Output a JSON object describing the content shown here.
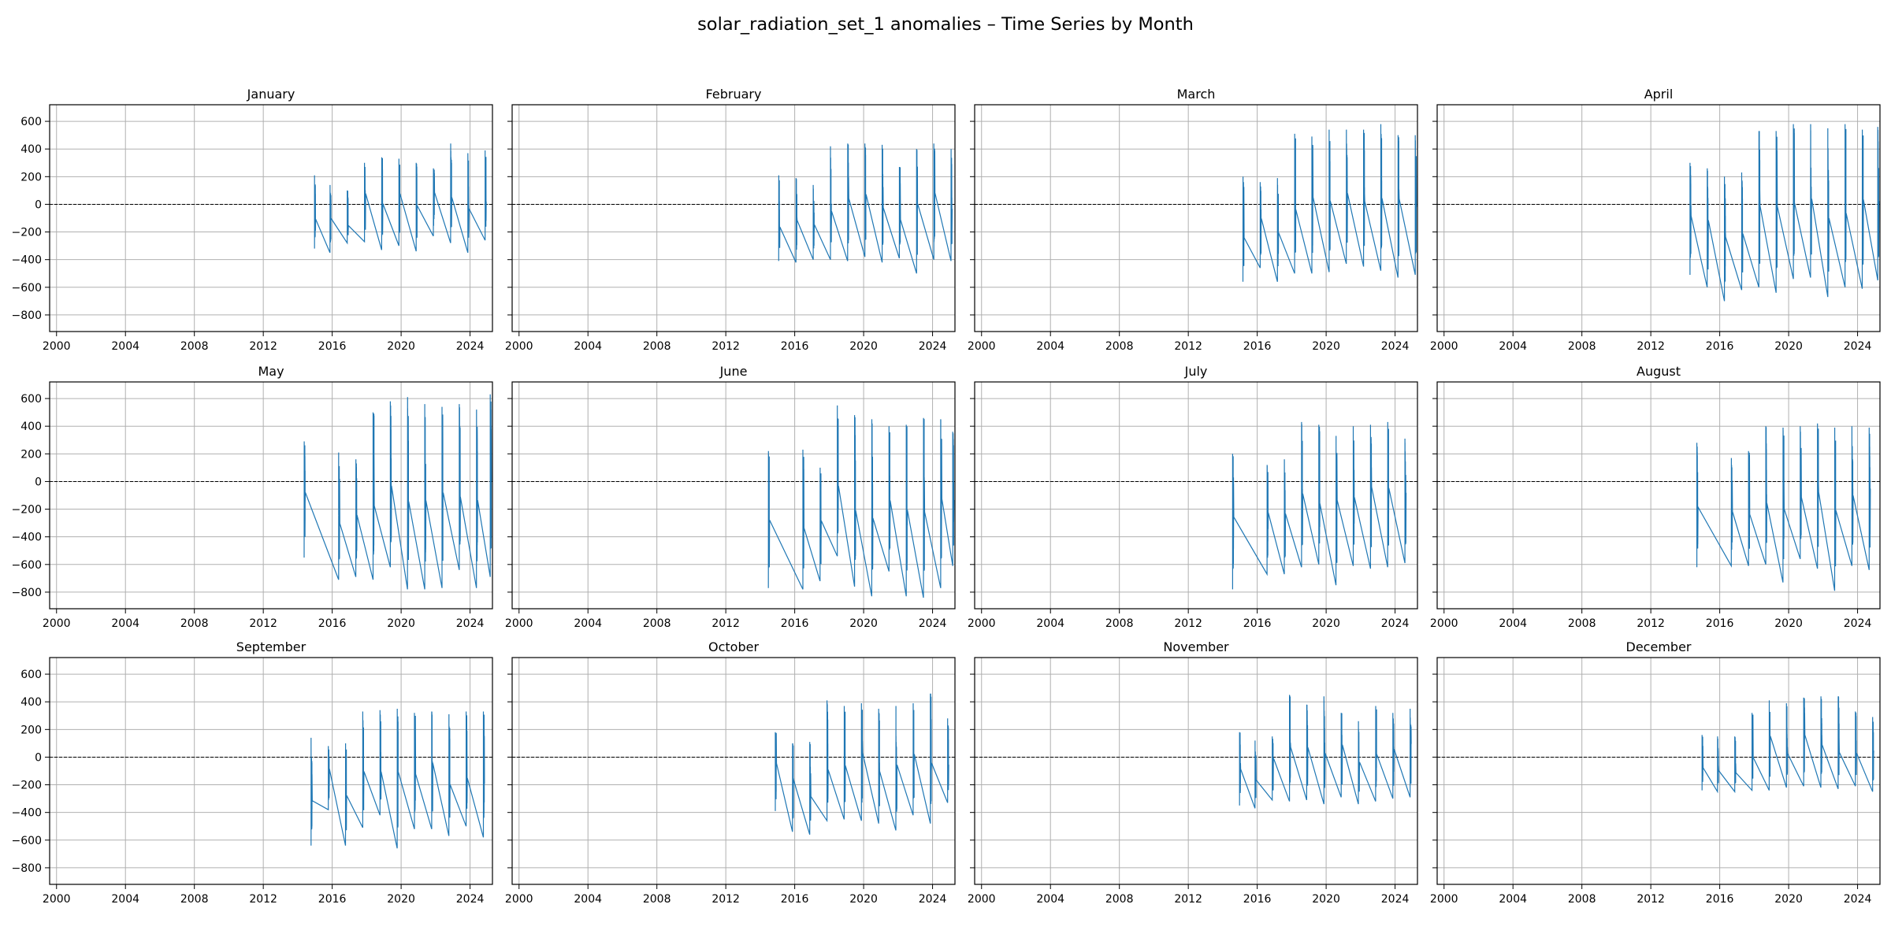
{
  "title": "solar_radiation_set_1 anomalies – Time Series by Month",
  "colors": {
    "series": "#1f77b4",
    "grid": "#b0b0b0",
    "zero_line": "#000000"
  },
  "chart_data": {
    "type": "line",
    "layout": "3x4 small multiples, shared x and y axes",
    "xlim": [
      1999.6,
      2025.3
    ],
    "ylim": [
      -920,
      720
    ],
    "x_ticks": [
      "2000",
      "2004",
      "2008",
      "2012",
      "2016",
      "2020",
      "2024"
    ],
    "y_ticks": [
      "600",
      "400",
      "200",
      "0",
      "−200",
      "−400",
      "−600",
      "−800"
    ],
    "grid": true,
    "reference_line": {
      "y": 0,
      "style": "dashed"
    },
    "panels": [
      {
        "month": "January",
        "segments": [
          {
            "x": 2015.0,
            "min": -320,
            "max": 210
          },
          {
            "x": 2015.9,
            "min": -350,
            "max": 140
          },
          {
            "x": 2016.9,
            "min": -280,
            "max": 100
          },
          {
            "x": 2017.9,
            "min": -270,
            "max": 300
          },
          {
            "x": 2018.9,
            "min": -330,
            "max": 340
          },
          {
            "x": 2019.9,
            "min": -300,
            "max": 330
          },
          {
            "x": 2020.9,
            "min": -340,
            "max": 300
          },
          {
            "x": 2021.9,
            "min": -230,
            "max": 260
          },
          {
            "x": 2022.9,
            "min": -280,
            "max": 440
          },
          {
            "x": 2023.9,
            "min": -350,
            "max": 370
          },
          {
            "x": 2024.9,
            "min": -260,
            "max": 390
          }
        ]
      },
      {
        "month": "February",
        "segments": [
          {
            "x": 2015.1,
            "min": -410,
            "max": 210
          },
          {
            "x": 2016.1,
            "min": -420,
            "max": 190
          },
          {
            "x": 2017.1,
            "min": -400,
            "max": 140
          },
          {
            "x": 2018.1,
            "min": -400,
            "max": 420
          },
          {
            "x": 2019.1,
            "min": -410,
            "max": 440
          },
          {
            "x": 2020.1,
            "min": -380,
            "max": 440
          },
          {
            "x": 2021.1,
            "min": -420,
            "max": 430
          },
          {
            "x": 2022.1,
            "min": -390,
            "max": 270
          },
          {
            "x": 2023.1,
            "min": -500,
            "max": 400
          },
          {
            "x": 2024.1,
            "min": -400,
            "max": 440
          },
          {
            "x": 2025.1,
            "min": -410,
            "max": 400
          }
        ]
      },
      {
        "month": "March",
        "segments": [
          {
            "x": 2015.2,
            "min": -560,
            "max": 200
          },
          {
            "x": 2016.2,
            "min": -460,
            "max": 160
          },
          {
            "x": 2017.2,
            "min": -560,
            "max": 190
          },
          {
            "x": 2018.2,
            "min": -500,
            "max": 510
          },
          {
            "x": 2019.2,
            "min": -500,
            "max": 490
          },
          {
            "x": 2020.2,
            "min": -490,
            "max": 540
          },
          {
            "x": 2021.2,
            "min": -430,
            "max": 540
          },
          {
            "x": 2022.2,
            "min": -450,
            "max": 540
          },
          {
            "x": 2023.2,
            "min": -480,
            "max": 580
          },
          {
            "x": 2024.2,
            "min": -530,
            "max": 500
          },
          {
            "x": 2025.2,
            "min": -510,
            "max": 500
          }
        ]
      },
      {
        "month": "April",
        "segments": [
          {
            "x": 2014.3,
            "min": -510,
            "max": 300
          },
          {
            "x": 2015.3,
            "min": -600,
            "max": 260
          },
          {
            "x": 2016.3,
            "min": -700,
            "max": 200
          },
          {
            "x": 2017.3,
            "min": -620,
            "max": 230
          },
          {
            "x": 2018.3,
            "min": -600,
            "max": 530
          },
          {
            "x": 2019.3,
            "min": -640,
            "max": 530
          },
          {
            "x": 2020.3,
            "min": -540,
            "max": 580
          },
          {
            "x": 2021.3,
            "min": -530,
            "max": 580
          },
          {
            "x": 2022.3,
            "min": -670,
            "max": 550
          },
          {
            "x": 2023.3,
            "min": -600,
            "max": 580
          },
          {
            "x": 2024.3,
            "min": -610,
            "max": 540
          },
          {
            "x": 2025.2,
            "min": -550,
            "max": 560
          }
        ]
      },
      {
        "month": "May",
        "segments": [
          {
            "x": 2014.4,
            "min": -550,
            "max": 290
          },
          {
            "x": 2016.4,
            "min": -710,
            "max": 210
          },
          {
            "x": 2017.4,
            "min": -690,
            "max": 160
          },
          {
            "x": 2018.4,
            "min": -710,
            "max": 500
          },
          {
            "x": 2019.4,
            "min": -620,
            "max": 580
          },
          {
            "x": 2020.4,
            "min": -780,
            "max": 610
          },
          {
            "x": 2021.4,
            "min": -780,
            "max": 560
          },
          {
            "x": 2022.4,
            "min": -770,
            "max": 540
          },
          {
            "x": 2023.4,
            "min": -640,
            "max": 560
          },
          {
            "x": 2024.4,
            "min": -770,
            "max": 520
          },
          {
            "x": 2025.2,
            "min": -690,
            "max": 630
          }
        ]
      },
      {
        "month": "June",
        "segments": [
          {
            "x": 2014.5,
            "min": -770,
            "max": 220
          },
          {
            "x": 2016.5,
            "min": -780,
            "max": 230
          },
          {
            "x": 2017.5,
            "min": -720,
            "max": 100
          },
          {
            "x": 2018.5,
            "min": -540,
            "max": 550
          },
          {
            "x": 2019.5,
            "min": -760,
            "max": 480
          },
          {
            "x": 2020.5,
            "min": -830,
            "max": 450
          },
          {
            "x": 2021.5,
            "min": -650,
            "max": 400
          },
          {
            "x": 2022.5,
            "min": -830,
            "max": 410
          },
          {
            "x": 2023.5,
            "min": -840,
            "max": 460
          },
          {
            "x": 2024.5,
            "min": -770,
            "max": 450
          },
          {
            "x": 2025.2,
            "min": -610,
            "max": 360
          }
        ]
      },
      {
        "month": "July",
        "segments": [
          {
            "x": 2014.6,
            "min": -780,
            "max": 200
          },
          {
            "x": 2016.6,
            "min": -670,
            "max": 120
          },
          {
            "x": 2017.6,
            "min": -670,
            "max": 160
          },
          {
            "x": 2018.6,
            "min": -620,
            "max": 430
          },
          {
            "x": 2019.6,
            "min": -600,
            "max": 410
          },
          {
            "x": 2020.6,
            "min": -750,
            "max": 330
          },
          {
            "x": 2021.6,
            "min": -610,
            "max": 400
          },
          {
            "x": 2022.6,
            "min": -630,
            "max": 410
          },
          {
            "x": 2023.6,
            "min": -620,
            "max": 430
          },
          {
            "x": 2024.6,
            "min": -590,
            "max": 310
          }
        ]
      },
      {
        "month": "August",
        "segments": [
          {
            "x": 2014.7,
            "min": -620,
            "max": 280
          },
          {
            "x": 2016.7,
            "min": -610,
            "max": 170
          },
          {
            "x": 2017.7,
            "min": -610,
            "max": 220
          },
          {
            "x": 2018.7,
            "min": -600,
            "max": 400
          },
          {
            "x": 2019.7,
            "min": -730,
            "max": 390
          },
          {
            "x": 2020.7,
            "min": -560,
            "max": 400
          },
          {
            "x": 2021.7,
            "min": -630,
            "max": 420
          },
          {
            "x": 2022.7,
            "min": -790,
            "max": 390
          },
          {
            "x": 2023.7,
            "min": -610,
            "max": 400
          },
          {
            "x": 2024.7,
            "min": -640,
            "max": 390
          }
        ]
      },
      {
        "month": "September",
        "segments": [
          {
            "x": 2014.8,
            "min": -640,
            "max": 140
          },
          {
            "x": 2015.8,
            "min": -380,
            "max": 80
          },
          {
            "x": 2016.8,
            "min": -640,
            "max": 100
          },
          {
            "x": 2017.8,
            "min": -510,
            "max": 330
          },
          {
            "x": 2018.8,
            "min": -420,
            "max": 340
          },
          {
            "x": 2019.8,
            "min": -660,
            "max": 350
          },
          {
            "x": 2020.8,
            "min": -520,
            "max": 320
          },
          {
            "x": 2021.8,
            "min": -520,
            "max": 330
          },
          {
            "x": 2022.8,
            "min": -570,
            "max": 310
          },
          {
            "x": 2023.8,
            "min": -500,
            "max": 330
          },
          {
            "x": 2024.8,
            "min": -580,
            "max": 330
          }
        ]
      },
      {
        "month": "October",
        "segments": [
          {
            "x": 2014.9,
            "min": -390,
            "max": 180
          },
          {
            "x": 2015.9,
            "min": -540,
            "max": 100
          },
          {
            "x": 2016.9,
            "min": -560,
            "max": 110
          },
          {
            "x": 2017.9,
            "min": -460,
            "max": 410
          },
          {
            "x": 2018.9,
            "min": -450,
            "max": 370
          },
          {
            "x": 2019.9,
            "min": -460,
            "max": 390
          },
          {
            "x": 2020.9,
            "min": -480,
            "max": 350
          },
          {
            "x": 2021.9,
            "min": -530,
            "max": 370
          },
          {
            "x": 2022.9,
            "min": -420,
            "max": 390
          },
          {
            "x": 2023.9,
            "min": -480,
            "max": 460
          },
          {
            "x": 2024.9,
            "min": -330,
            "max": 280
          }
        ]
      },
      {
        "month": "November",
        "segments": [
          {
            "x": 2015.0,
            "min": -350,
            "max": 180
          },
          {
            "x": 2015.9,
            "min": -370,
            "max": 120
          },
          {
            "x": 2016.9,
            "min": -310,
            "max": 150
          },
          {
            "x": 2017.9,
            "min": -320,
            "max": 450
          },
          {
            "x": 2018.9,
            "min": -310,
            "max": 380
          },
          {
            "x": 2019.9,
            "min": -340,
            "max": 440
          },
          {
            "x": 2020.9,
            "min": -290,
            "max": 320
          },
          {
            "x": 2021.9,
            "min": -340,
            "max": 260
          },
          {
            "x": 2022.9,
            "min": -320,
            "max": 370
          },
          {
            "x": 2023.9,
            "min": -300,
            "max": 320
          },
          {
            "x": 2024.9,
            "min": -290,
            "max": 350
          }
        ]
      },
      {
        "month": "December",
        "segments": [
          {
            "x": 2015.0,
            "min": -240,
            "max": 160
          },
          {
            "x": 2015.9,
            "min": -250,
            "max": 150
          },
          {
            "x": 2016.9,
            "min": -250,
            "max": 150
          },
          {
            "x": 2017.9,
            "min": -240,
            "max": 320
          },
          {
            "x": 2018.9,
            "min": -240,
            "max": 410
          },
          {
            "x": 2019.9,
            "min": -220,
            "max": 390
          },
          {
            "x": 2020.9,
            "min": -210,
            "max": 430
          },
          {
            "x": 2021.9,
            "min": -220,
            "max": 440
          },
          {
            "x": 2022.9,
            "min": -230,
            "max": 440
          },
          {
            "x": 2023.9,
            "min": -210,
            "max": 330
          },
          {
            "x": 2024.9,
            "min": -250,
            "max": 290
          }
        ]
      }
    ]
  }
}
